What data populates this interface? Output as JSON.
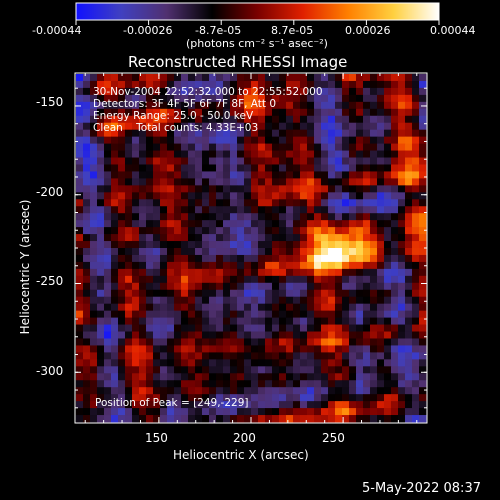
{
  "chart_data": {
    "type": "heatmap",
    "title": "Reconstructed RHESSI Image",
    "xlabel": "Heliocentric X (arcsec)",
    "ylabel": "Heliocentric Y (arcsec)",
    "x_ticks": [
      150,
      200,
      250
    ],
    "y_ticks": [
      -150,
      -200,
      -250,
      -300
    ],
    "xlim": [
      105,
      295
    ],
    "ylim": [
      -328,
      -132
    ],
    "colorbar": {
      "min": -0.00044,
      "max": 0.00044,
      "tick_labels": [
        "-0.00044",
        "-0.00026",
        "-8.7e-05",
        "8.7e-05",
        "0.00026",
        "0.00044"
      ],
      "unit_label": "(photons cm⁻² s⁻¹ asec⁻²)",
      "colors": [
        "#1010ff",
        "#4040c0",
        "#503070",
        "#000000",
        "#7a0000",
        "#e02000",
        "#ff8000",
        "#ffd040",
        "#ffffff"
      ]
    },
    "annotations": {
      "time_range": "30-Nov-2004 22:52:32.000 to 22:55:52.000",
      "detectors": "Detectors: 3F 4F 5F 6F 7F 8F, Att 0",
      "energy_range": "Energy Range: 25.0 - 50.0 keV",
      "clean_counts": "Clean    Total counts: 4.33E+03",
      "peak_position": "Position of Peak = [249,-229]"
    },
    "peak": {
      "x": 249,
      "y": -229
    }
  },
  "footer": {
    "timestamp": "5-May-2022 08:37"
  }
}
